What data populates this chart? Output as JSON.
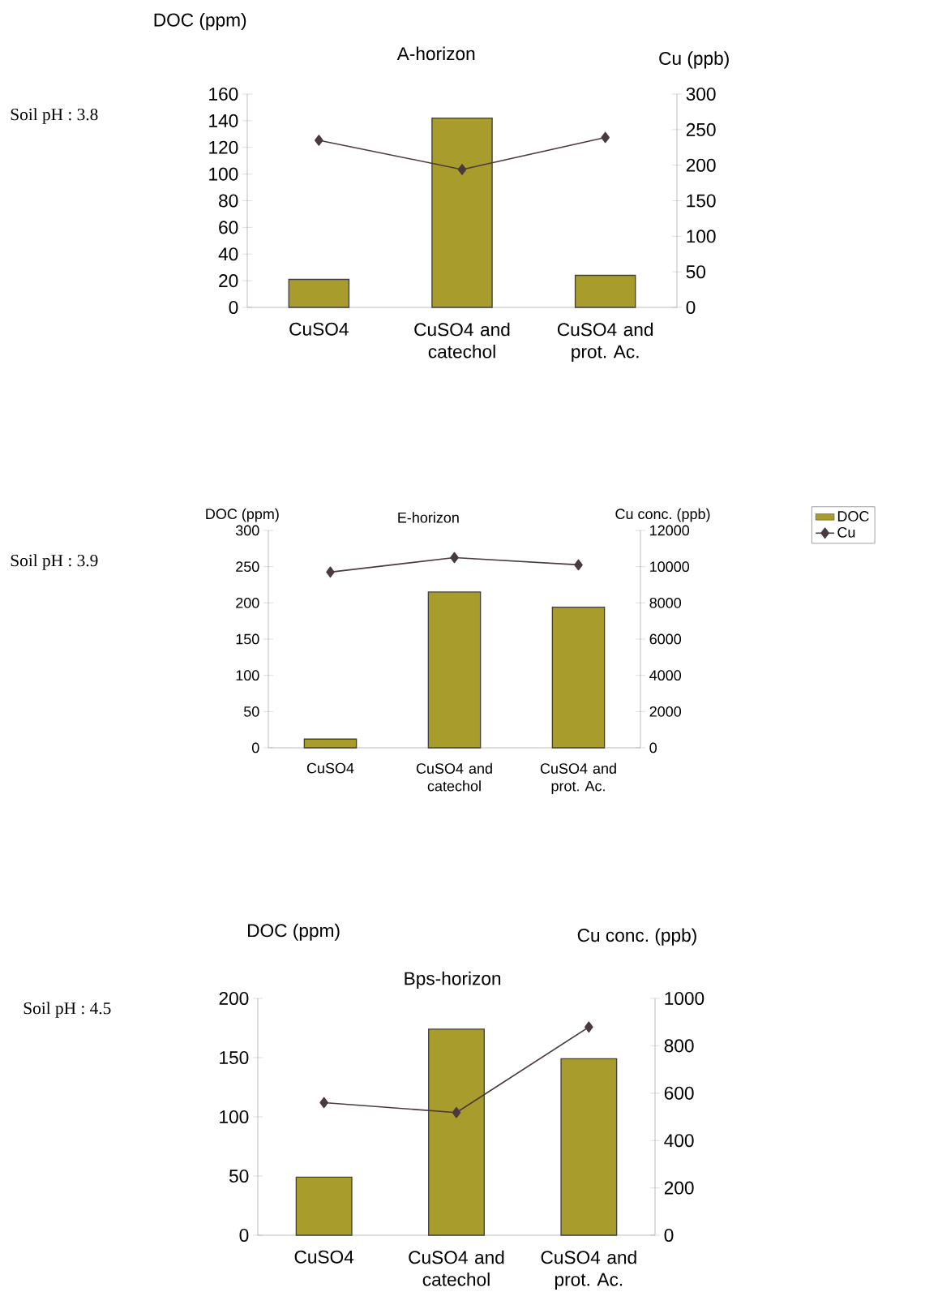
{
  "chart_data": [
    {
      "type": "bar",
      "title": "A-horizon",
      "ylabel": "DOC (ppm)",
      "y2label": "Cu (ppb)",
      "annotations": [
        "Soil pH : 3.8"
      ],
      "categories": [
        "CuSO4",
        "CuSO4 and catechol",
        "CuSO4 and prot. Ac."
      ],
      "series": [
        {
          "type": "bar",
          "color": "#a89c2c",
          "values": [
            21,
            142,
            24
          ]
        },
        {
          "type": "line",
          "axis": "y2",
          "marker": "diamond",
          "color": "#4a3a40",
          "values": [
            235,
            194,
            239
          ]
        }
      ],
      "ylim": [
        0,
        160
      ],
      "yticks": [
        0,
        20,
        40,
        60,
        80,
        100,
        120,
        140,
        160
      ],
      "y2lim": [
        0,
        300
      ],
      "y2ticks": [
        0,
        50,
        100,
        150,
        200,
        250,
        300
      ]
    },
    {
      "type": "bar",
      "title": "E-horizon",
      "ylabel": "DOC (ppm)",
      "y2label": "Cu conc. (ppb)",
      "annotations": [
        "Soil pH : 3.9"
      ],
      "legend": "right",
      "categories": [
        "CuSO4",
        "CuSO4 and catechol",
        "CuSO4 and prot. Ac."
      ],
      "series": [
        {
          "name": "DOC",
          "type": "bar",
          "color": "#a89c2c",
          "values": [
            12,
            215,
            194
          ]
        },
        {
          "name": "Cu",
          "type": "line",
          "axis": "y2",
          "marker": "diamond",
          "color": "#4a3a40",
          "values": [
            9700,
            10500,
            10100
          ]
        }
      ],
      "ylim": [
        0,
        300
      ],
      "yticks": [
        0,
        50,
        100,
        150,
        200,
        250,
        300
      ],
      "y2lim": [
        0,
        12000
      ],
      "y2ticks": [
        0,
        2000,
        4000,
        6000,
        8000,
        10000,
        12000
      ]
    },
    {
      "type": "bar",
      "title": "Bps-horizon",
      "ylabel": "DOC (ppm)",
      "y2label": "Cu conc. (ppb)",
      "annotations": [
        "Soil pH : 4.5"
      ],
      "categories": [
        "CuSO4",
        "CuSO4 and catechol",
        "CuSO4 and prot. Ac."
      ],
      "series": [
        {
          "type": "bar",
          "color": "#a89c2c",
          "values": [
            49,
            174,
            149
          ]
        },
        {
          "type": "line",
          "axis": "y2",
          "marker": "diamond",
          "color": "#4a3a40",
          "values": [
            560,
            518,
            879
          ]
        }
      ],
      "ylim": [
        0,
        200
      ],
      "yticks": [
        0,
        50,
        100,
        150,
        200
      ],
      "y2lim": [
        0,
        1000
      ],
      "y2ticks": [
        0,
        200,
        400,
        600,
        800,
        1000
      ]
    }
  ]
}
